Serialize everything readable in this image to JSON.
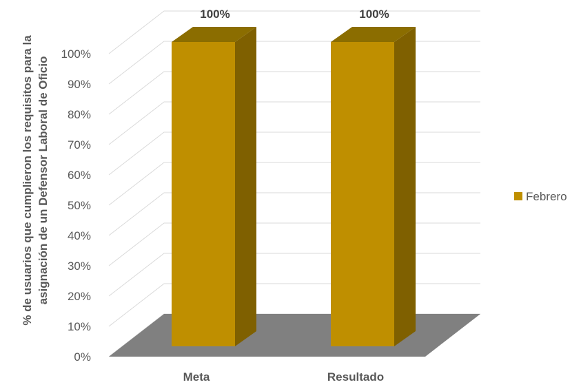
{
  "chart_data": {
    "type": "bar",
    "categories": [
      "Meta",
      "Resultado"
    ],
    "series": [
      {
        "name": "Febrero",
        "values": [
          100,
          100
        ],
        "color": "#BF8F00"
      }
    ],
    "data_labels": [
      "100%",
      "100%"
    ],
    "ylabel_lines": [
      "% de usuarios que cumplieron los requisitos para la",
      "asignación de un Defensor Laboral de Oficio"
    ],
    "ylim": [
      0,
      100
    ],
    "yticks": [
      "0%",
      "10%",
      "20%",
      "30%",
      "40%",
      "50%",
      "60%",
      "70%",
      "80%",
      "90%",
      "100%"
    ],
    "grid": true,
    "three_d": true,
    "legend_position": "right",
    "colors": {
      "bar_front": "#BF8F00",
      "bar_side": "#7F6000",
      "bar_top": "#8B6D00",
      "floor": "#808080",
      "grid": "#D9D9D9"
    }
  }
}
